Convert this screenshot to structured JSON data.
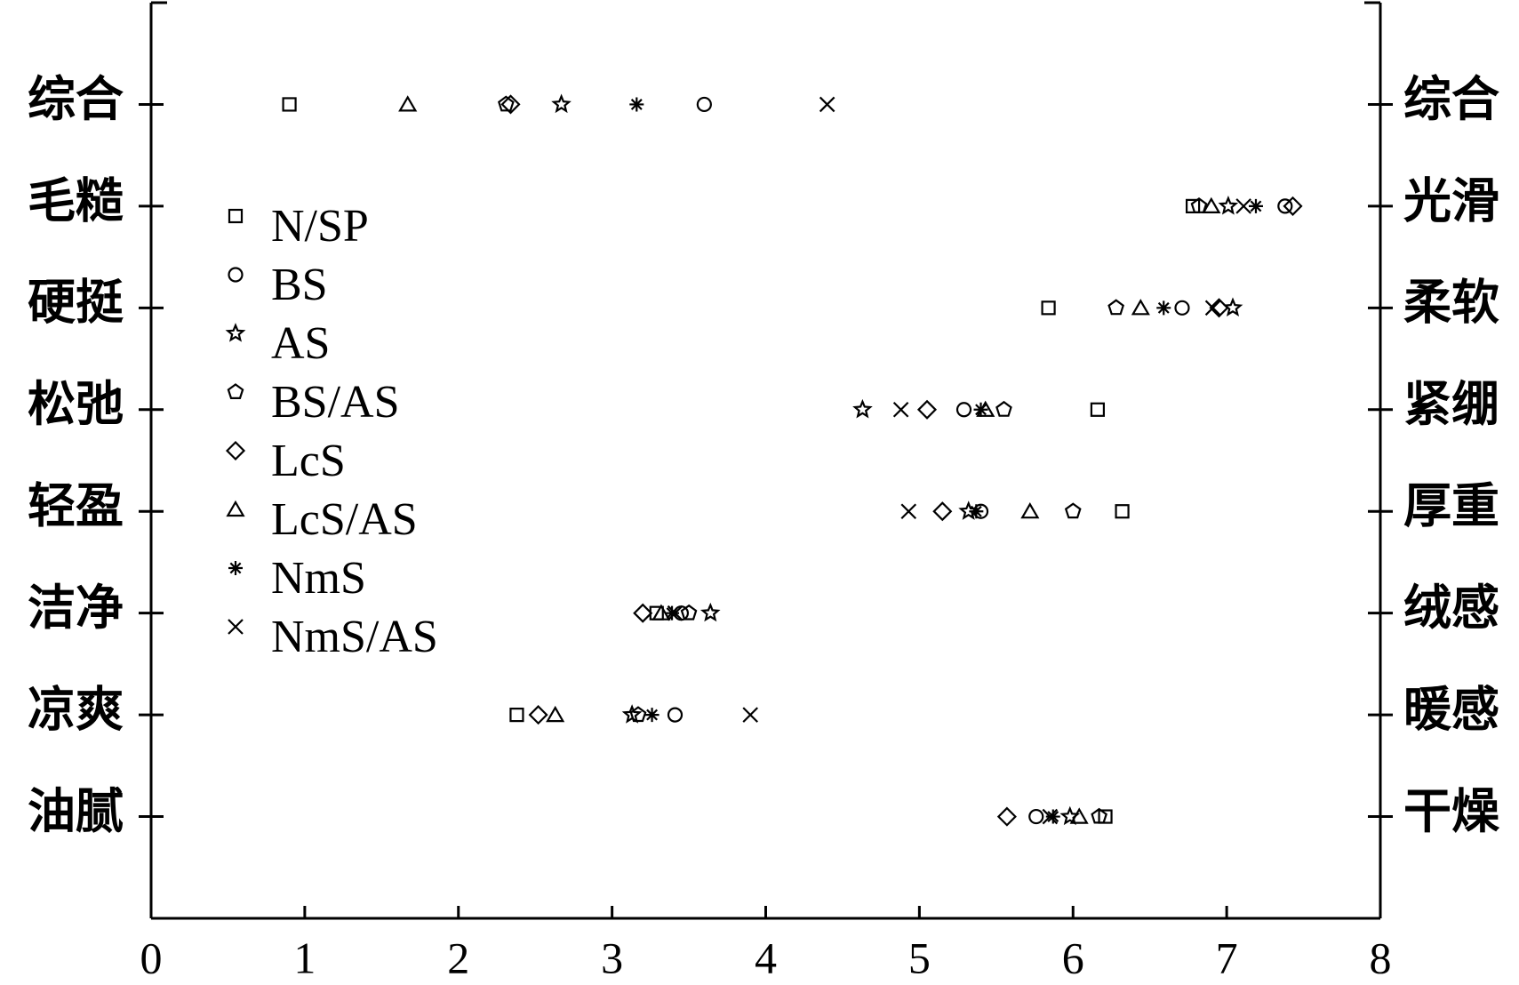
{
  "chart_data": {
    "type": "dot",
    "categories": [
      "综合",
      "毛糙",
      "硬挺",
      "松弛",
      "轻盈",
      "洁净",
      "凉爽",
      "油腻"
    ],
    "right_categories": [
      "综合",
      "光滑",
      "柔软",
      "紧绷",
      "厚重",
      "绒感",
      "暖感",
      "干燥"
    ],
    "xlim": [
      0,
      8
    ],
    "xticks": [
      0,
      1,
      2,
      3,
      4,
      5,
      6,
      7,
      8
    ],
    "color": "#000000",
    "series": [
      {
        "name": "N/SP",
        "marker": "square",
        "values": [
          0.9,
          6.78,
          5.84,
          6.16,
          6.32,
          3.29,
          2.38,
          6.21
        ]
      },
      {
        "name": "BS",
        "marker": "circle",
        "values": [
          3.6,
          7.38,
          6.71,
          5.29,
          5.4,
          3.45,
          3.41,
          5.76
        ]
      },
      {
        "name": "AS",
        "marker": "star",
        "values": [
          2.67,
          7.01,
          7.04,
          4.63,
          5.32,
          3.64,
          3.13,
          5.98
        ]
      },
      {
        "name": "BS/AS",
        "marker": "pentagon",
        "values": [
          2.31,
          6.82,
          6.28,
          5.55,
          6.0,
          3.5,
          3.17,
          6.17
        ]
      },
      {
        "name": "LcS",
        "marker": "diamond",
        "values": [
          2.34,
          7.43,
          6.95,
          5.05,
          5.15,
          3.2,
          2.52,
          5.57
        ]
      },
      {
        "name": "LcS/AS",
        "marker": "triangle",
        "values": [
          1.67,
          6.9,
          6.44,
          5.43,
          5.72,
          3.32,
          2.63,
          6.04
        ]
      },
      {
        "name": "NmS",
        "marker": "asterisk",
        "values": [
          3.16,
          7.19,
          6.59,
          5.4,
          5.37,
          3.39,
          3.26,
          5.87
        ]
      },
      {
        "name": "NmS/AS",
        "marker": "cross",
        "values": [
          4.4,
          7.11,
          6.91,
          4.88,
          4.93,
          3.41,
          3.9,
          5.85
        ]
      }
    ]
  }
}
